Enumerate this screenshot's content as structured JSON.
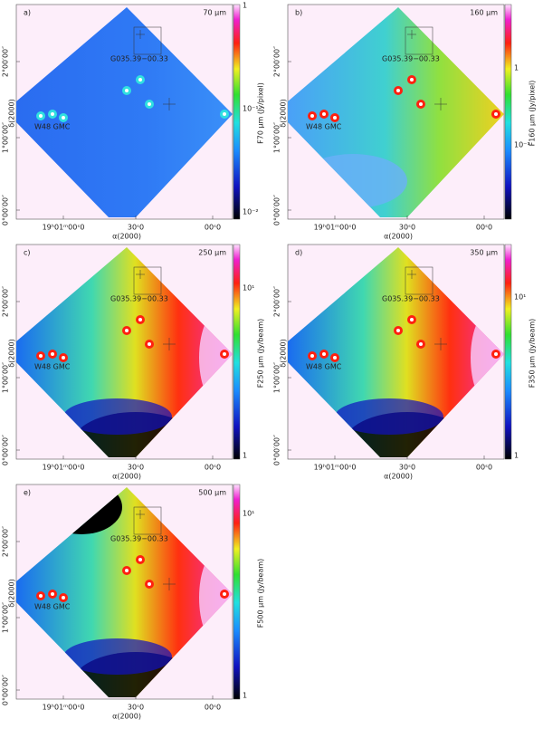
{
  "axes": {
    "x_label": "α(2000)",
    "y_label": "δ(2000)",
    "x_ticks": [
      "19ʰ01ᵐ00ˢ0",
      "30ˢ0",
      "00ˢ0"
    ],
    "y_ticks": [
      "2°00′00″",
      "1°00′00″",
      "0°00′00″"
    ]
  },
  "annotations": [
    "G035.39−00.33",
    "W48 GMC"
  ],
  "panels": [
    {
      "label": "a)",
      "wavelength": "70 μm",
      "colorbar_label": "F70 μm (Jy/pixel)",
      "colorbar_ticks": [
        "1",
        "10⁻¹",
        "10⁻²"
      ]
    },
    {
      "label": "b)",
      "wavelength": "160 μm",
      "colorbar_label": "F160 μm (Jy/pixel)",
      "colorbar_ticks": [
        "1",
        "10⁻¹"
      ]
    },
    {
      "label": "c)",
      "wavelength": "250 μm",
      "colorbar_label": "F250 μm (Jy/beam)",
      "colorbar_ticks": [
        "10¹",
        "1"
      ]
    },
    {
      "label": "d)",
      "wavelength": "350 μm",
      "colorbar_label": "F350 μm (Jy/beam)",
      "colorbar_ticks": [
        "10¹",
        "1"
      ]
    },
    {
      "label": "e)",
      "wavelength": "500 μm",
      "colorbar_label": "F500 μm (Jy/beam)",
      "colorbar_ticks": [
        "10¹",
        "1"
      ]
    }
  ]
}
